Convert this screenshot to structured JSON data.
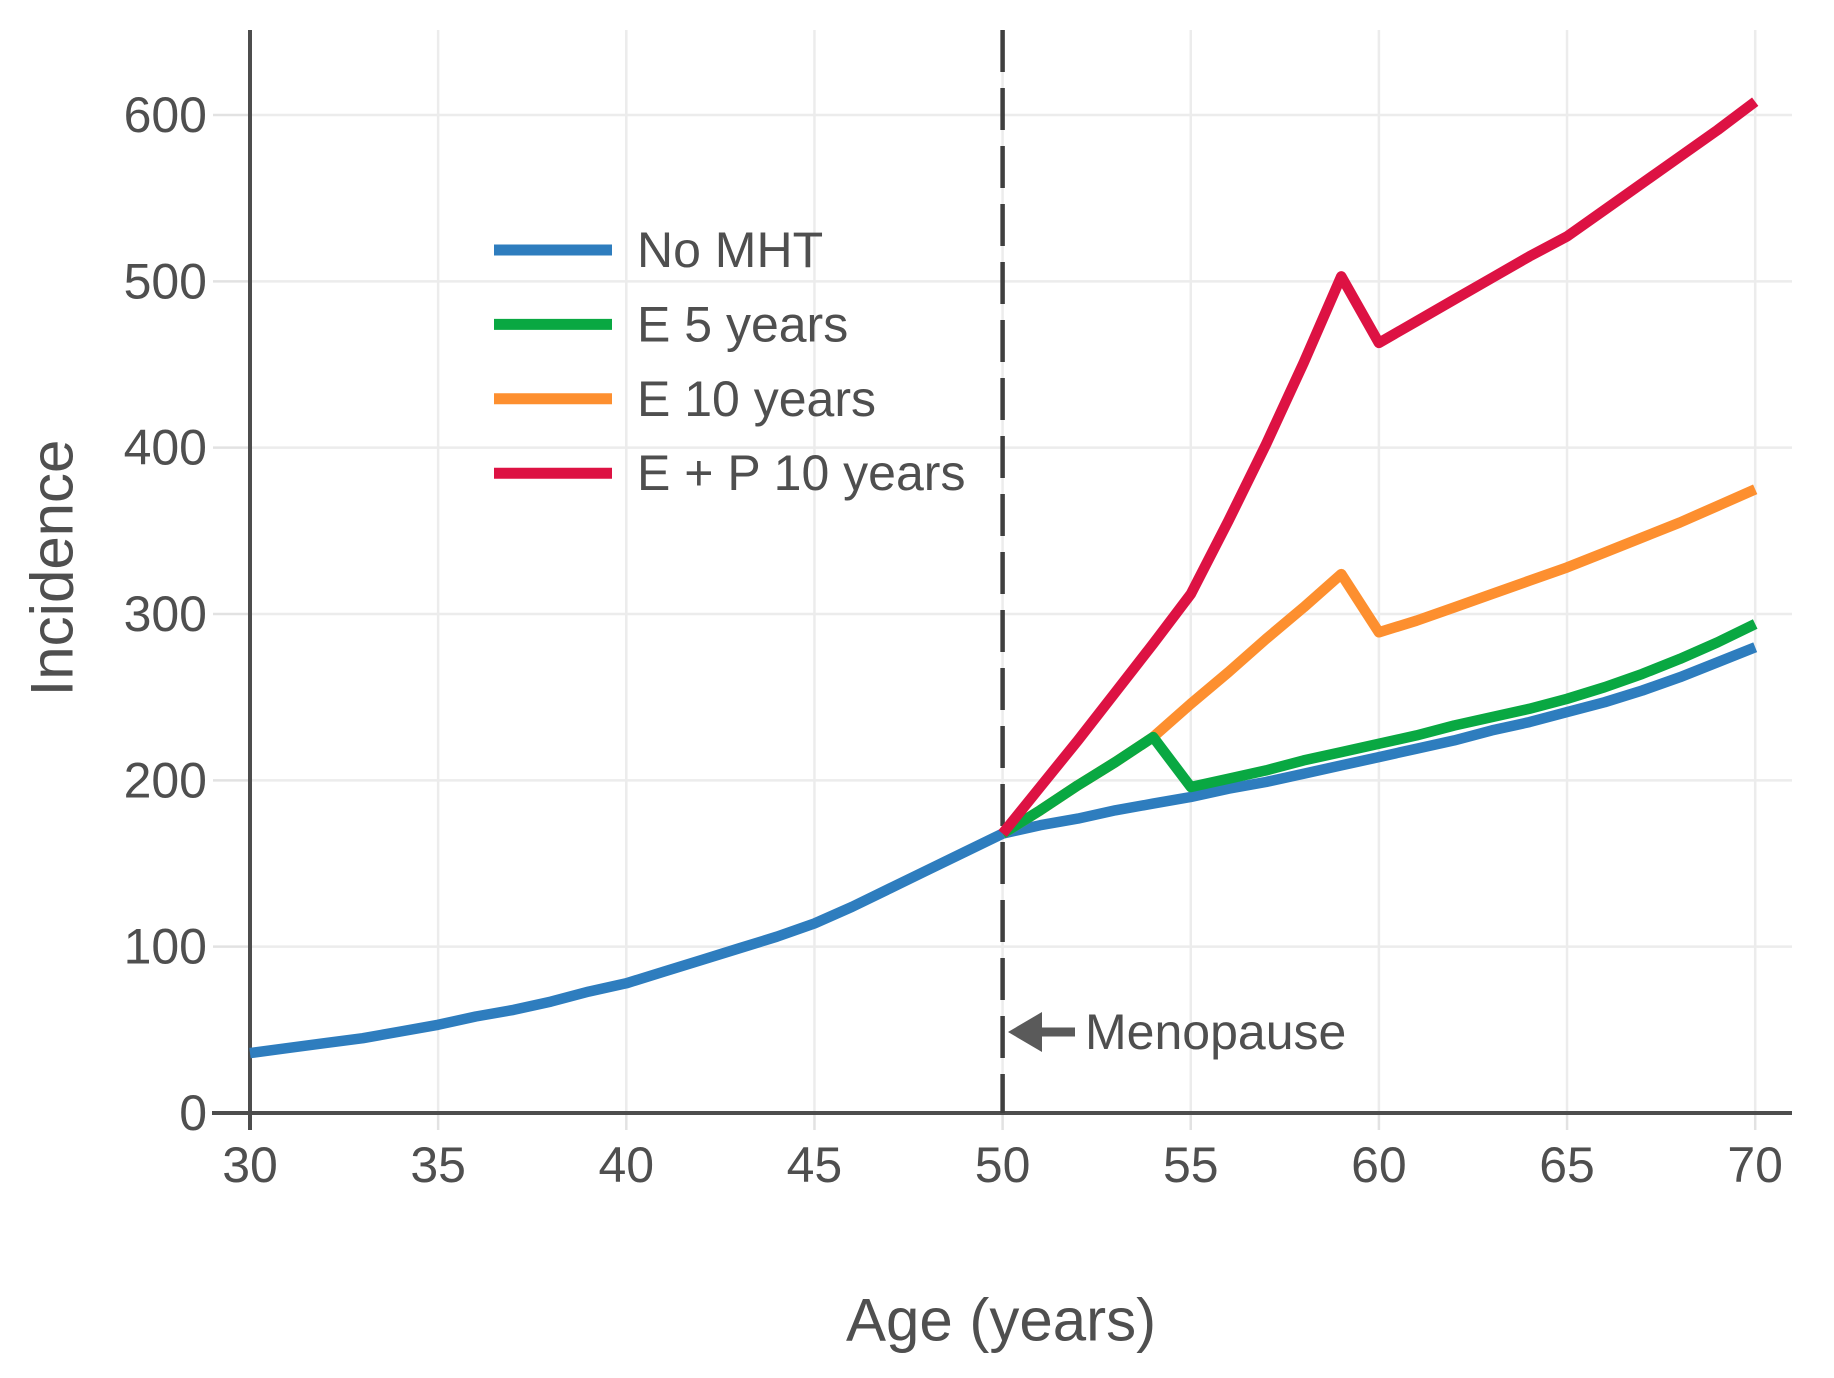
{
  "chart_data": {
    "type": "line",
    "title": "",
    "xlabel": "Age (years)",
    "ylabel": "Incidence",
    "xlim": [
      30,
      71
    ],
    "ylim": [
      0,
      650
    ],
    "x_ticks": [
      30,
      35,
      40,
      45,
      50,
      55,
      60,
      65,
      70
    ],
    "y_ticks": [
      0,
      100,
      200,
      300,
      400,
      500,
      600
    ],
    "grid": true,
    "legend_position": "upper-left-inside",
    "menopause_line": {
      "x": 50,
      "style": "dashed",
      "label": "Menopause"
    },
    "annotation": {
      "label": "Menopause",
      "x": 50,
      "y": 49,
      "arrow": "left"
    },
    "series": [
      {
        "name": "No MHT",
        "color": "#2e7dbe",
        "points": [
          [
            30,
            36
          ],
          [
            31,
            39
          ],
          [
            32,
            42
          ],
          [
            33,
            45
          ],
          [
            34,
            49
          ],
          [
            35,
            53
          ],
          [
            36,
            58
          ],
          [
            37,
            62
          ],
          [
            38,
            67
          ],
          [
            39,
            73
          ],
          [
            40,
            78
          ],
          [
            41,
            85
          ],
          [
            42,
            92
          ],
          [
            43,
            99
          ],
          [
            44,
            106
          ],
          [
            45,
            114
          ],
          [
            46,
            124
          ],
          [
            47,
            135
          ],
          [
            48,
            146
          ],
          [
            49,
            157
          ],
          [
            50,
            168
          ],
          [
            51,
            173
          ],
          [
            52,
            177
          ],
          [
            53,
            182
          ],
          [
            54,
            186
          ],
          [
            55,
            190
          ],
          [
            56,
            195
          ],
          [
            57,
            199
          ],
          [
            58,
            204
          ],
          [
            59,
            209
          ],
          [
            60,
            214
          ],
          [
            61,
            219
          ],
          [
            62,
            224
          ],
          [
            63,
            230
          ],
          [
            64,
            235
          ],
          [
            65,
            241
          ],
          [
            66,
            247
          ],
          [
            67,
            254
          ],
          [
            68,
            262
          ],
          [
            69,
            271
          ],
          [
            70,
            280
          ]
        ]
      },
      {
        "name": "E 5 years",
        "color": "#09a842",
        "points": [
          [
            50,
            168
          ],
          [
            51,
            182
          ],
          [
            52,
            197
          ],
          [
            53,
            211
          ],
          [
            54,
            226
          ],
          [
            55,
            196
          ],
          [
            56,
            201
          ],
          [
            57,
            206
          ],
          [
            58,
            212
          ],
          [
            59,
            217
          ],
          [
            60,
            222
          ],
          [
            61,
            227
          ],
          [
            62,
            233
          ],
          [
            63,
            238
          ],
          [
            64,
            243
          ],
          [
            65,
            249
          ],
          [
            66,
            256
          ],
          [
            67,
            264
          ],
          [
            68,
            273
          ],
          [
            69,
            283
          ],
          [
            70,
            294
          ]
        ]
      },
      {
        "name": "E 10 years",
        "color": "#fd8f2f",
        "points": [
          [
            50,
            168
          ],
          [
            51,
            182
          ],
          [
            52,
            197
          ],
          [
            53,
            211
          ],
          [
            54,
            226
          ],
          [
            55,
            246
          ],
          [
            56,
            265
          ],
          [
            57,
            285
          ],
          [
            58,
            304
          ],
          [
            59,
            324
          ],
          [
            60,
            289
          ],
          [
            61,
            296
          ],
          [
            62,
            304
          ],
          [
            63,
            312
          ],
          [
            64,
            320
          ],
          [
            65,
            328
          ],
          [
            66,
            337
          ],
          [
            67,
            346
          ],
          [
            68,
            355
          ],
          [
            69,
            365
          ],
          [
            70,
            375
          ]
        ]
      },
      {
        "name": "E + P 10 years",
        "color": "#dd1243",
        "points": [
          [
            50,
            168
          ],
          [
            51,
            196
          ],
          [
            52,
            224
          ],
          [
            53,
            253
          ],
          [
            54,
            282
          ],
          [
            55,
            312
          ],
          [
            56,
            356
          ],
          [
            57,
            402
          ],
          [
            58,
            451
          ],
          [
            59,
            503
          ],
          [
            60,
            463
          ],
          [
            61,
            476
          ],
          [
            62,
            489
          ],
          [
            63,
            502
          ],
          [
            64,
            515
          ],
          [
            65,
            527
          ],
          [
            66,
            543
          ],
          [
            67,
            559
          ],
          [
            68,
            575
          ],
          [
            69,
            591
          ],
          [
            70,
            608
          ]
        ]
      }
    ],
    "style_colors": {
      "grid": "#ececec",
      "tick": "#e2e2e2",
      "spine": "#4d4d4d",
      "dashed_line": "#3f3f3f",
      "text": "#4f4f4f",
      "arrow": "#5a5a5a"
    }
  }
}
